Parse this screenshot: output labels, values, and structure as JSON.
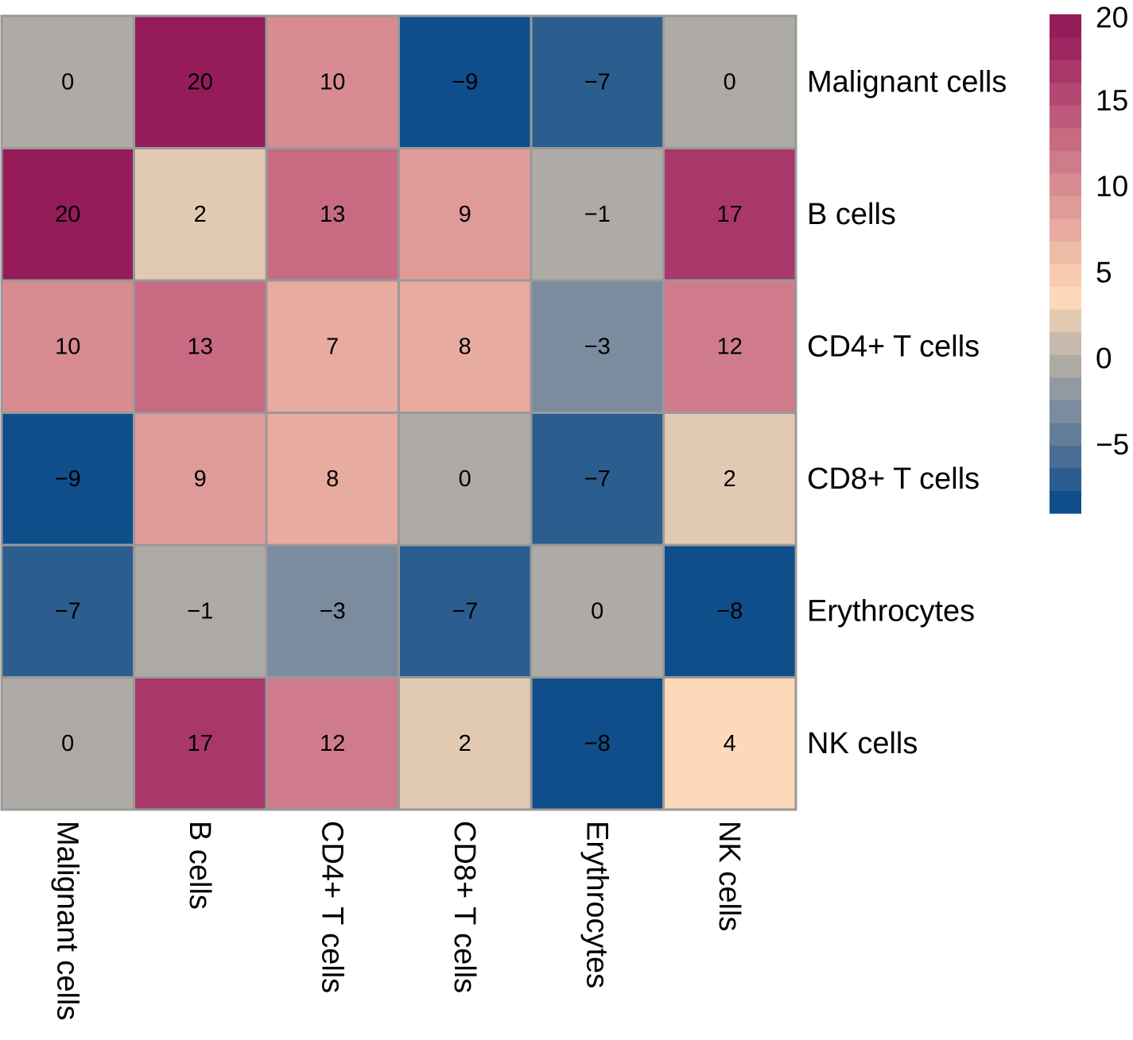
{
  "chart_data": {
    "type": "heatmap",
    "title": "",
    "rows": [
      "Malignant cells",
      "B cells",
      "CD4+ T cells",
      "CD8+ T cells",
      "Erythrocytes",
      "NK cells"
    ],
    "columns": [
      "Malignant cells",
      "B cells",
      "CD4+ T cells",
      "CD8+ T cells",
      "Erythrocytes",
      "NK cells"
    ],
    "values": [
      [
        0,
        20,
        10,
        -9,
        -7,
        0
      ],
      [
        20,
        2,
        13,
        9,
        -1,
        17
      ],
      [
        10,
        13,
        7,
        8,
        -3,
        12
      ],
      [
        -9,
        9,
        8,
        0,
        -7,
        2
      ],
      [
        -7,
        -1,
        -3,
        -7,
        0,
        -8
      ],
      [
        0,
        17,
        12,
        2,
        -8,
        4
      ]
    ],
    "cell_labels": [
      [
        "0",
        "20",
        "10",
        "−9",
        "−7",
        "0"
      ],
      [
        "20",
        "2",
        "13",
        "9",
        "−1",
        "17"
      ],
      [
        "10",
        "13",
        "7",
        "8",
        "−3",
        "12"
      ],
      [
        "−9",
        "9",
        "8",
        "0",
        "−7",
        "2"
      ],
      [
        "−7",
        "−1",
        "−3",
        "−7",
        "0",
        "−8"
      ],
      [
        "0",
        "17",
        "12",
        "2",
        "−8",
        "4"
      ]
    ],
    "colorbar": {
      "range": [
        -9,
        20
      ],
      "ticks": [
        20,
        15,
        10,
        5,
        0,
        -5
      ],
      "tick_labels": [
        "20",
        "15",
        "10",
        "5",
        "0",
        "−5"
      ],
      "colors": [
        "#104e8b",
        "#2b5d8e",
        "#4a6d93",
        "#637e98",
        "#7c8c9f",
        "#9399a3",
        "#aeaaa6",
        "#c7b9ab",
        "#e2cab2",
        "#fdd9b9",
        "#f6cbaf",
        "#eebba6",
        "#e7ab9f",
        "#df9b98",
        "#d88b91",
        "#cf7b8b",
        "#c76a82",
        "#bd597a",
        "#b34872",
        "#a8376a",
        "#9d2661",
        "#951c59"
      ],
      "placement": "right"
    },
    "grid_color": "#999999",
    "row_labels_position": "right",
    "column_labels_position": "bottom",
    "column_labels_rotation": 90
  }
}
